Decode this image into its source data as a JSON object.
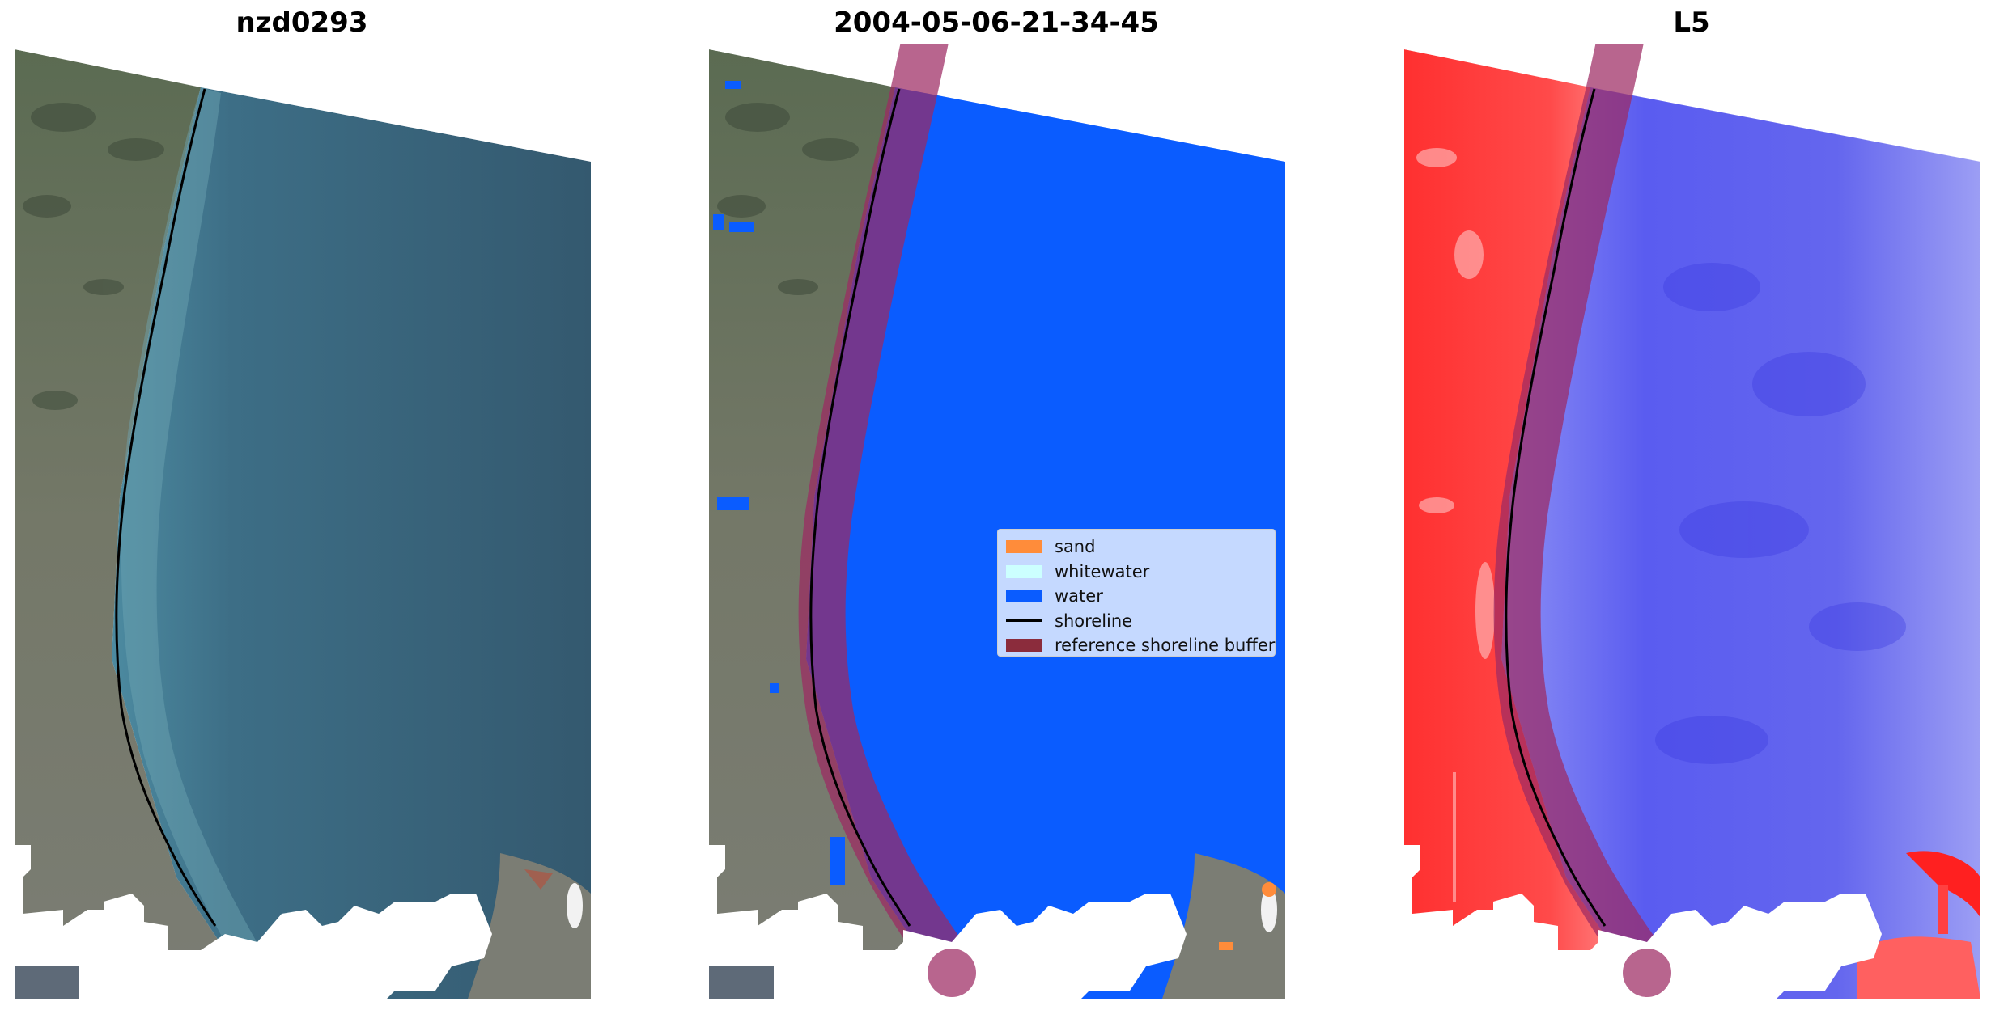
{
  "panels": [
    {
      "title": "nzd0293"
    },
    {
      "title": "2004-05-06-21-34-45"
    },
    {
      "title": "L5"
    }
  ],
  "legend": {
    "items": [
      {
        "label": "sand",
        "color": "#ff8c3a",
        "kind": "patch"
      },
      {
        "label": "whitewater",
        "color": "#ccffff",
        "kind": "patch"
      },
      {
        "label": "water",
        "color": "#0a5cff",
        "kind": "patch"
      },
      {
        "label": "shoreline",
        "color": "#000000",
        "kind": "line"
      },
      {
        "label": "reference shoreline buffer",
        "color": "#8b2c3c",
        "kind": "patch"
      }
    ]
  },
  "colors": {
    "land": "#6f7566",
    "sea_rgb": "#3a6880",
    "water_class": "#0a5cff",
    "index_land": "#ff2a2a",
    "index_water": "#5a5cf0",
    "buffer": "#9c2a62",
    "cloud_mask": "#ffffff"
  }
}
